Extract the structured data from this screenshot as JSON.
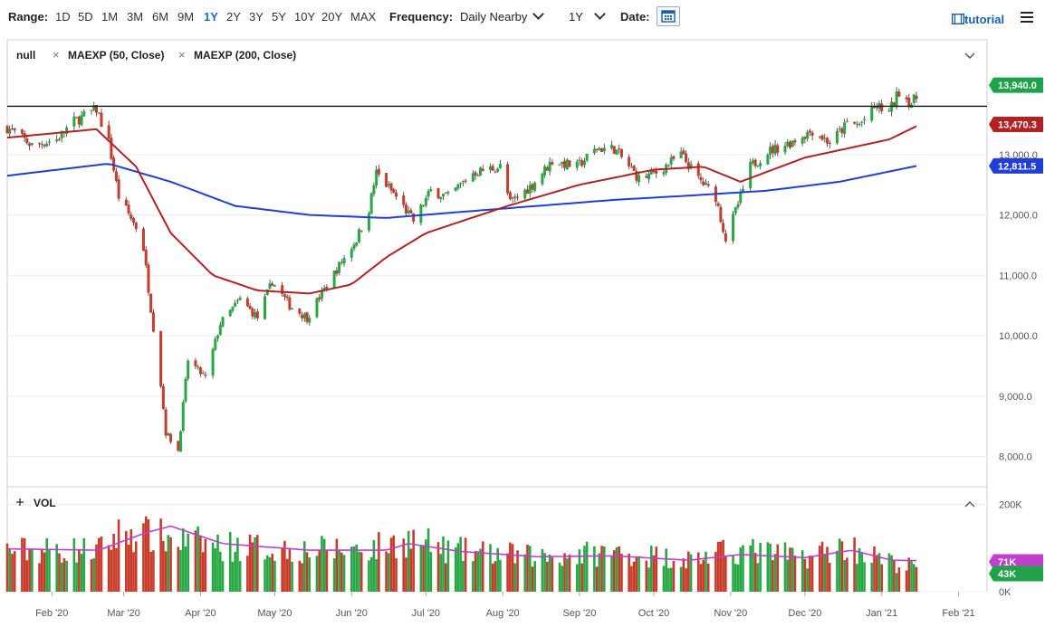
{
  "toolbar": {
    "range_label": "Range:",
    "ranges": [
      "1D",
      "5D",
      "1M",
      "3M",
      "6M",
      "9M",
      "1Y",
      "2Y",
      "3Y",
      "5Y",
      "10Y",
      "20Y",
      "MAX"
    ],
    "active_range": "1Y",
    "frequency_label": "Frequency:",
    "frequency_value": "Daily Nearby",
    "period_value": "1Y",
    "date_label": "Date:",
    "tutorial_label": "tutorial"
  },
  "legend": {
    "series_name": "null",
    "study1": "MAEXP (50, Close)",
    "study2": "MAEXP (200, Close)",
    "volume_title": "VOL"
  },
  "colors": {
    "up": "#27a844",
    "down": "#c83a2a",
    "ma50": "#b22222",
    "ma200": "#1f3fd6",
    "vol_ma": "#c13fcf",
    "last_price_tag": "#1fa24a",
    "accent": "#1a6fc9"
  },
  "chart_data": {
    "type": "candlestick",
    "date_range": [
      "2020-01-14",
      "2021-01-15"
    ],
    "x_ticks": [
      "Feb '20",
      "Mar '20",
      "Apr '20",
      "May '20",
      "Jun '20",
      "Jul '20",
      "Aug '20",
      "Sep '20",
      "Oct '20",
      "Nov '20",
      "Dec '20",
      "Jan '21",
      "Feb '21"
    ],
    "price_axis": {
      "ticks": [
        "8,000.0",
        "9,000.0",
        "10,000.0",
        "11,000.0",
        "12,000.0",
        "13,000.0"
      ],
      "tick_values": [
        8000,
        9000,
        10000,
        11000,
        12000,
        13000
      ],
      "range": [
        7500,
        14900
      ]
    },
    "volume_axis": {
      "ticks": [
        "200K",
        "0K"
      ],
      "tick_values": [
        200000,
        0
      ],
      "range": [
        0,
        240000
      ]
    },
    "horizontal_line": 13800,
    "tags": {
      "last_price": "13,940.0",
      "ma50": "13,470.3",
      "ma200": "12,811.5",
      "vol_ma": "71K",
      "volume": "43K"
    },
    "close_anchors": [
      [
        "2020-01-14",
        13450
      ],
      [
        "2020-01-24",
        13150
      ],
      [
        "2020-02-03",
        13250
      ],
      [
        "2020-02-10",
        13550
      ],
      [
        "2020-02-19",
        13750
      ],
      [
        "2020-02-24",
        13200
      ],
      [
        "2020-02-28",
        12300
      ],
      [
        "2020-03-06",
        11800
      ],
      [
        "2020-03-09",
        11450
      ],
      [
        "2020-03-12",
        10450
      ],
      [
        "2020-03-16",
        9200
      ],
      [
        "2020-03-18",
        8400
      ],
      [
        "2020-03-23",
        8100
      ],
      [
        "2020-03-27",
        9600
      ],
      [
        "2020-04-03",
        9300
      ],
      [
        "2020-04-09",
        10200
      ],
      [
        "2020-04-17",
        10600
      ],
      [
        "2020-04-24",
        10300
      ],
      [
        "2020-04-30",
        10900
      ],
      [
        "2020-05-07",
        10500
      ],
      [
        "2020-05-14",
        10300
      ],
      [
        "2020-05-20",
        10700
      ],
      [
        "2020-05-26",
        11100
      ],
      [
        "2020-06-03",
        11600
      ],
      [
        "2020-06-08",
        12100
      ],
      [
        "2020-06-11",
        12700
      ],
      [
        "2020-06-19",
        12300
      ],
      [
        "2020-06-26",
        11900
      ],
      [
        "2020-07-03",
        12400
      ],
      [
        "2020-07-10",
        12300
      ],
      [
        "2020-07-20",
        12700
      ],
      [
        "2020-07-31",
        12800
      ],
      [
        "2020-08-04",
        12200
      ],
      [
        "2020-08-13",
        12500
      ],
      [
        "2020-08-21",
        12900
      ],
      [
        "2020-08-31",
        12800
      ],
      [
        "2020-09-08",
        13100
      ],
      [
        "2020-09-15",
        13100
      ],
      [
        "2020-09-21",
        12800
      ],
      [
        "2020-09-25",
        12600
      ],
      [
        "2020-10-02",
        12700
      ],
      [
        "2020-10-12",
        13000
      ],
      [
        "2020-10-19",
        12600
      ],
      [
        "2020-10-26",
        12300
      ],
      [
        "2020-10-30",
        11600
      ],
      [
        "2020-11-05",
        12300
      ],
      [
        "2020-11-09",
        12800
      ],
      [
        "2020-11-16",
        13050
      ],
      [
        "2020-11-25",
        13200
      ],
      [
        "2020-12-04",
        13400
      ],
      [
        "2020-12-11",
        13200
      ],
      [
        "2020-12-18",
        13500
      ],
      [
        "2020-12-23",
        13500
      ],
      [
        "2020-12-30",
        13800
      ],
      [
        "2021-01-04",
        13700
      ],
      [
        "2021-01-08",
        14050
      ],
      [
        "2021-01-13",
        13850
      ],
      [
        "2021-01-15",
        13940
      ]
    ],
    "ma50_anchors": [
      [
        "2020-01-14",
        13280
      ],
      [
        "2020-02-19",
        13420
      ],
      [
        "2020-03-06",
        12800
      ],
      [
        "2020-03-20",
        11700
      ],
      [
        "2020-04-06",
        11000
      ],
      [
        "2020-04-24",
        10750
      ],
      [
        "2020-05-15",
        10700
      ],
      [
        "2020-06-01",
        10850
      ],
      [
        "2020-06-15",
        11300
      ],
      [
        "2020-07-01",
        11700
      ],
      [
        "2020-08-03",
        12150
      ],
      [
        "2020-09-01",
        12500
      ],
      [
        "2020-10-01",
        12750
      ],
      [
        "2020-10-21",
        12800
      ],
      [
        "2020-11-05",
        12550
      ],
      [
        "2020-12-01",
        12950
      ],
      [
        "2021-01-04",
        13250
      ],
      [
        "2021-01-15",
        13470.3
      ]
    ],
    "ma200_anchors": [
      [
        "2020-01-14",
        12650
      ],
      [
        "2020-02-24",
        12850
      ],
      [
        "2020-03-20",
        12550
      ],
      [
        "2020-04-15",
        12150
      ],
      [
        "2020-05-15",
        12000
      ],
      [
        "2020-06-15",
        11950
      ],
      [
        "2020-07-15",
        12050
      ],
      [
        "2020-08-15",
        12150
      ],
      [
        "2020-09-15",
        12250
      ],
      [
        "2020-10-15",
        12320
      ],
      [
        "2020-11-15",
        12400
      ],
      [
        "2020-12-15",
        12550
      ],
      [
        "2021-01-15",
        12811.5
      ]
    ],
    "volume_base_anchors": [
      [
        "2020-01-14",
        95000
      ],
      [
        "2020-02-20",
        95000
      ],
      [
        "2020-03-01",
        140000
      ],
      [
        "2020-03-20",
        120000
      ],
      [
        "2020-04-10",
        105000
      ],
      [
        "2020-05-15",
        95000
      ],
      [
        "2020-06-10",
        100000
      ],
      [
        "2020-06-25",
        120000
      ],
      [
        "2020-07-10",
        95000
      ],
      [
        "2020-08-15",
        80000
      ],
      [
        "2020-09-15",
        90000
      ],
      [
        "2020-10-15",
        75000
      ],
      [
        "2020-11-05",
        95000
      ],
      [
        "2020-12-01",
        80000
      ],
      [
        "2020-12-18",
        105000
      ],
      [
        "2021-01-08",
        60000
      ],
      [
        "2021-01-15",
        60000
      ]
    ],
    "volume_ma_anchors": [
      [
        "2020-01-14",
        98000
      ],
      [
        "2020-02-20",
        95000
      ],
      [
        "2020-03-10",
        135000
      ],
      [
        "2020-03-20",
        150000
      ],
      [
        "2020-04-10",
        110000
      ],
      [
        "2020-05-15",
        95000
      ],
      [
        "2020-06-15",
        95000
      ],
      [
        "2020-06-24",
        110000
      ],
      [
        "2020-07-15",
        92000
      ],
      [
        "2020-08-15",
        80000
      ],
      [
        "2020-09-15",
        82000
      ],
      [
        "2020-10-15",
        72000
      ],
      [
        "2020-11-05",
        85000
      ],
      [
        "2020-12-01",
        78000
      ],
      [
        "2020-12-20",
        95000
      ],
      [
        "2021-01-05",
        72000
      ],
      [
        "2021-01-15",
        71000
      ]
    ]
  }
}
